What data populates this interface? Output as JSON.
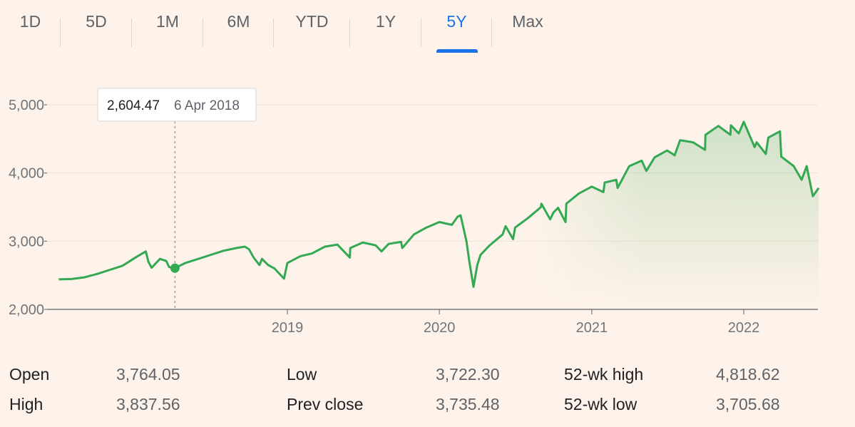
{
  "tabs": [
    {
      "label": "1D",
      "active": false
    },
    {
      "label": "5D",
      "active": false
    },
    {
      "label": "1M",
      "active": false
    },
    {
      "label": "6M",
      "active": false
    },
    {
      "label": "YTD",
      "active": false
    },
    {
      "label": "1Y",
      "active": false
    },
    {
      "label": "5Y",
      "active": true
    },
    {
      "label": "Max",
      "active": false
    }
  ],
  "tooltip": {
    "value": "2,604.47",
    "date": "6 Apr 2018"
  },
  "colors": {
    "line": "#34a853",
    "accent": "#1a73e8",
    "background": "#fdf3ea"
  },
  "chart_data": {
    "type": "line",
    "y_ticks": [
      "5,000",
      "4,000",
      "3,000",
      "2,000"
    ],
    "x_ticks": [
      "2019",
      "2020",
      "2021",
      "2022"
    ],
    "ylim": [
      2000,
      5000
    ],
    "xlim": [
      "2017-07",
      "2022-06"
    ],
    "grid": true,
    "highlight": {
      "x": "2018-04-06",
      "y": 2604.47
    },
    "series": [
      {
        "x": [
          "2017-07",
          "2017-08",
          "2017-09",
          "2017-10",
          "2017-11",
          "2017-12",
          "2018-01",
          "2018-01-26",
          "2018-02",
          "2018-02-09",
          "2018-03",
          "2018-03-16",
          "2018-03-23",
          "2018-04-06",
          "2018-05",
          "2018-06",
          "2018-07",
          "2018-08",
          "2018-09",
          "2018-09-21",
          "2018-10",
          "2018-10-12",
          "2018-10-26",
          "2018-11",
          "2018-11-16",
          "2018-12",
          "2018-12-24",
          "2019-01",
          "2019-02",
          "2019-03",
          "2019-04",
          "2019-05",
          "2019-05-31",
          "2019-06",
          "2019-07",
          "2019-08",
          "2019-08-15",
          "2019-09",
          "2019-10",
          "2019-10-04",
          "2019-11",
          "2019-12",
          "2020-01",
          "2020-01-31",
          "2020-02-14",
          "2020-02-21",
          "2020-03-06",
          "2020-03-13",
          "2020-03-23",
          "2020-04",
          "2020-04-09",
          "2020-05",
          "2020-06",
          "2020-06-08",
          "2020-06-26",
          "2020-07",
          "2020-08",
          "2020-09",
          "2020-09-02",
          "2020-09-23",
          "2020-10",
          "2020-10-12",
          "2020-10-30",
          "2020-11",
          "2020-12",
          "2021-01",
          "2021-01-29",
          "2021-02",
          "2021-03",
          "2021-03-04",
          "2021-04",
          "2021-05",
          "2021-05-12",
          "2021-06",
          "2021-07",
          "2021-07-19",
          "2021-08",
          "2021-09",
          "2021-09-30",
          "2021-10",
          "2021-11",
          "2021-11-30",
          "2021-12",
          "2021-12-20",
          "2022-01",
          "2022-01-27",
          "2022-02",
          "2022-02-23",
          "2022-03",
          "2022-03-29",
          "2022-04",
          "2022-05",
          "2022-05-20",
          "2022-06",
          "2022-06-16",
          "2022-06-30"
        ],
        "values": [
          2440,
          2445,
          2470,
          2520,
          2580,
          2640,
          2760,
          2850,
          2700,
          2610,
          2740,
          2710,
          2620,
          2604,
          2680,
          2740,
          2800,
          2860,
          2900,
          2920,
          2880,
          2760,
          2650,
          2740,
          2650,
          2600,
          2450,
          2680,
          2780,
          2820,
          2920,
          2950,
          2760,
          2900,
          2980,
          2940,
          2850,
          2960,
          2990,
          2900,
          3100,
          3200,
          3280,
          3240,
          3360,
          3380,
          3000,
          2700,
          2330,
          2650,
          2800,
          2940,
          3100,
          3220,
          3030,
          3200,
          3340,
          3500,
          3550,
          3320,
          3420,
          3490,
          3280,
          3550,
          3700,
          3800,
          3720,
          3860,
          3900,
          3780,
          4100,
          4180,
          4030,
          4230,
          4330,
          4260,
          4480,
          4450,
          4340,
          4560,
          4690,
          4560,
          4700,
          4580,
          4750,
          4380,
          4450,
          4280,
          4520,
          4610,
          4240,
          4100,
          3900,
          4100,
          3660,
          3780
        ]
      }
    ]
  },
  "stats": [
    {
      "label": "Open",
      "value": "3,764.05"
    },
    {
      "label": "High",
      "value": "3,837.56"
    },
    {
      "label": "Low",
      "value": "3,722.30"
    },
    {
      "label": "Prev close",
      "value": "3,735.48"
    },
    {
      "label": "52-wk high",
      "value": "4,818.62"
    },
    {
      "label": "52-wk low",
      "value": "3,705.68"
    }
  ]
}
